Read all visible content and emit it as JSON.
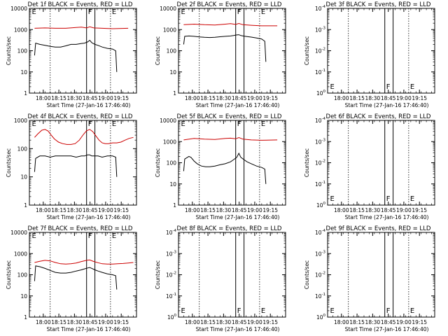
{
  "colors": {
    "events": "#000000",
    "lld": "#cc0000",
    "axes": "#000000",
    "background": "#ffffff"
  },
  "common": {
    "ylabel": "Counts/sec",
    "xlabel": "Start Time (27-Jan-16 17:46:40)",
    "xticks": [
      "18:00",
      "18:15",
      "18:30",
      "18:45",
      "19:00",
      "19:15"
    ],
    "xtick_minutes": [
      13.33,
      28.33,
      43.33,
      58.33,
      73.33,
      88.33
    ],
    "xlim_minutes": [
      0,
      103
    ],
    "marker_lines_minutes": [
      55.0,
      63.0
    ],
    "dotted_lines_minutes": [
      20.0,
      78.0
    ],
    "log_ticks_normal": [
      "1",
      "10",
      "100",
      "1000",
      "10000"
    ],
    "log_ticks_empty": [
      "10^0",
      "10^-1",
      "10^-2",
      "10^-3",
      "10^-4"
    ]
  },
  "chart_data": [
    {
      "id": "det1f",
      "title": "Det 1f BLACK = Events, RED = LLD",
      "type": "line",
      "scale": "log",
      "ylim": [
        1,
        10000
      ],
      "flags": [
        {
          "text": "E",
          "x": 1
        },
        {
          "text": "F",
          "x": 55
        },
        {
          "text": "E",
          "x": 78
        }
      ],
      "series": [
        {
          "key": "lld",
          "x": [
            5,
            15,
            25,
            35,
            45,
            50,
            55,
            58,
            62,
            70,
            80,
            95
          ],
          "values": [
            1150,
            1200,
            1150,
            1150,
            1250,
            1300,
            1200,
            1350,
            1200,
            1150,
            1100,
            1150
          ]
        },
        {
          "key": "events",
          "x": [
            5,
            6,
            10,
            15,
            20,
            25,
            30,
            35,
            40,
            45,
            50,
            53,
            56,
            58,
            60,
            63,
            66,
            70,
            75,
            80,
            83,
            84
          ],
          "values": [
            60,
            230,
            200,
            180,
            160,
            150,
            150,
            170,
            200,
            200,
            220,
            230,
            260,
            310,
            240,
            200,
            180,
            150,
            130,
            120,
            100,
            10
          ]
        }
      ]
    },
    {
      "id": "det2f",
      "title": "Det 2f BLACK = Events, RED = LLD",
      "type": "line",
      "scale": "log",
      "ylim": [
        1,
        10000
      ],
      "flags": [
        {
          "text": "E",
          "x": 1
        },
        {
          "text": "F",
          "x": 55
        },
        {
          "text": "E",
          "x": 78
        }
      ],
      "series": [
        {
          "key": "lld",
          "x": [
            5,
            15,
            25,
            35,
            45,
            50,
            55,
            58,
            62,
            70,
            80,
            95
          ],
          "values": [
            1700,
            1800,
            1700,
            1650,
            1800,
            1900,
            1750,
            1950,
            1700,
            1600,
            1500,
            1500
          ]
        },
        {
          "key": "events",
          "x": [
            5,
            6,
            10,
            15,
            20,
            25,
            30,
            35,
            40,
            45,
            50,
            53,
            56,
            58,
            60,
            63,
            66,
            70,
            75,
            80,
            83,
            84
          ],
          "values": [
            200,
            480,
            500,
            480,
            450,
            430,
            420,
            430,
            460,
            480,
            500,
            520,
            560,
            570,
            520,
            490,
            470,
            440,
            400,
            360,
            280,
            30
          ]
        }
      ]
    },
    {
      "id": "det3f",
      "title": "Det 3f BLACK = Events, RED = LLD",
      "type": "line",
      "scale": "log",
      "ylim": [
        0.0001,
        1
      ],
      "empty": true,
      "flags": [
        {
          "text": "E",
          "x": 1
        },
        {
          "text": "F",
          "x": 55
        },
        {
          "text": "E",
          "x": 78
        }
      ],
      "series": []
    },
    {
      "id": "det4f",
      "title": "Det 4f BLACK = Events, RED = LLD",
      "type": "line",
      "scale": "log",
      "ylim": [
        1,
        1000
      ],
      "flags": [
        {
          "text": "E",
          "x": 1
        },
        {
          "text": "F",
          "x": 55
        },
        {
          "text": "E",
          "x": 78
        }
      ],
      "series": [
        {
          "key": "lld",
          "x": [
            5,
            8,
            12,
            15,
            18,
            21,
            24,
            28,
            32,
            36,
            40,
            44,
            48,
            52,
            55,
            58,
            61,
            64,
            67,
            70,
            73,
            76,
            80,
            84,
            88,
            92,
            96,
            100
          ],
          "values": [
            250,
            330,
            450,
            480,
            420,
            300,
            220,
            170,
            150,
            140,
            140,
            150,
            200,
            320,
            430,
            480,
            400,
            280,
            200,
            160,
            150,
            150,
            160,
            160,
            170,
            200,
            230,
            250
          ]
        },
        {
          "key": "events",
          "x": [
            5,
            6,
            10,
            15,
            20,
            25,
            30,
            35,
            40,
            45,
            50,
            53,
            56,
            58,
            60,
            63,
            66,
            70,
            75,
            80,
            83,
            84
          ],
          "values": [
            15,
            45,
            55,
            55,
            50,
            55,
            55,
            55,
            55,
            50,
            55,
            55,
            60,
            60,
            55,
            55,
            55,
            50,
            55,
            55,
            50,
            10
          ]
        }
      ]
    },
    {
      "id": "det5f",
      "title": "Det 5f BLACK = Events, RED = LLD",
      "type": "line",
      "scale": "log",
      "ylim": [
        1,
        10000
      ],
      "flags": [
        {
          "text": "E",
          "x": 1
        },
        {
          "text": "F",
          "x": 55
        },
        {
          "text": "E",
          "x": 78
        }
      ],
      "series": [
        {
          "key": "lld",
          "x": [
            5,
            15,
            25,
            35,
            45,
            50,
            55,
            58,
            62,
            70,
            80,
            95
          ],
          "values": [
            1200,
            1400,
            1300,
            1250,
            1400,
            1450,
            1350,
            1550,
            1300,
            1200,
            1150,
            1200
          ]
        },
        {
          "key": "events",
          "x": [
            5,
            6,
            10,
            12,
            15,
            18,
            22,
            26,
            30,
            35,
            40,
            45,
            50,
            53,
            56,
            58,
            60,
            63,
            66,
            70,
            75,
            80,
            83,
            84
          ],
          "values": [
            40,
            150,
            200,
            180,
            120,
            90,
            70,
            65,
            65,
            70,
            80,
            90,
            110,
            140,
            180,
            280,
            180,
            140,
            110,
            90,
            70,
            60,
            50,
            10
          ]
        }
      ]
    },
    {
      "id": "det6f",
      "title": "Det 6f BLACK = Events, RED = LLD",
      "type": "line",
      "scale": "log",
      "ylim": [
        0.0001,
        1
      ],
      "empty": true,
      "flags": [
        {
          "text": "E",
          "x": 1
        },
        {
          "text": "F",
          "x": 55
        },
        {
          "text": "E",
          "x": 78
        }
      ],
      "series": []
    },
    {
      "id": "det7f",
      "title": "Det 7f BLACK = Events, RED = LLD",
      "type": "line",
      "scale": "log",
      "ylim": [
        1,
        10000
      ],
      "flags": [
        {
          "text": "E",
          "x": 1
        },
        {
          "text": "F",
          "x": 55
        },
        {
          "text": "E",
          "x": 78
        }
      ],
      "series": [
        {
          "key": "lld",
          "x": [
            5,
            10,
            15,
            20,
            25,
            30,
            35,
            40,
            45,
            50,
            55,
            58,
            62,
            66,
            70,
            75,
            80,
            85,
            90,
            95,
            100
          ],
          "values": [
            380,
            430,
            480,
            450,
            380,
            330,
            320,
            330,
            360,
            420,
            480,
            500,
            420,
            370,
            330,
            320,
            320,
            330,
            340,
            360,
            380
          ]
        },
        {
          "key": "events",
          "x": [
            5,
            6,
            10,
            15,
            20,
            25,
            30,
            35,
            40,
            45,
            50,
            53,
            56,
            58,
            60,
            63,
            66,
            70,
            75,
            80,
            83,
            84
          ],
          "values": [
            50,
            260,
            240,
            200,
            160,
            130,
            120,
            120,
            130,
            150,
            170,
            190,
            210,
            220,
            200,
            170,
            150,
            130,
            110,
            100,
            90,
            20
          ]
        }
      ]
    },
    {
      "id": "det8f",
      "title": "Det 8f BLACK = Events, RED = LLD",
      "type": "line",
      "scale": "log",
      "ylim": [
        0.0001,
        1
      ],
      "empty": true,
      "flags": [
        {
          "text": "E",
          "x": 1
        },
        {
          "text": "F",
          "x": 55
        },
        {
          "text": "E",
          "x": 78
        }
      ],
      "series": []
    },
    {
      "id": "det9f",
      "title": "Det 9f BLACK = Events, RED = LLD",
      "type": "line",
      "scale": "log",
      "ylim": [
        0.0001,
        1
      ],
      "empty": true,
      "flags": [
        {
          "text": "E",
          "x": 1
        },
        {
          "text": "F",
          "x": 55
        },
        {
          "text": "E",
          "x": 78
        }
      ],
      "series": []
    }
  ]
}
